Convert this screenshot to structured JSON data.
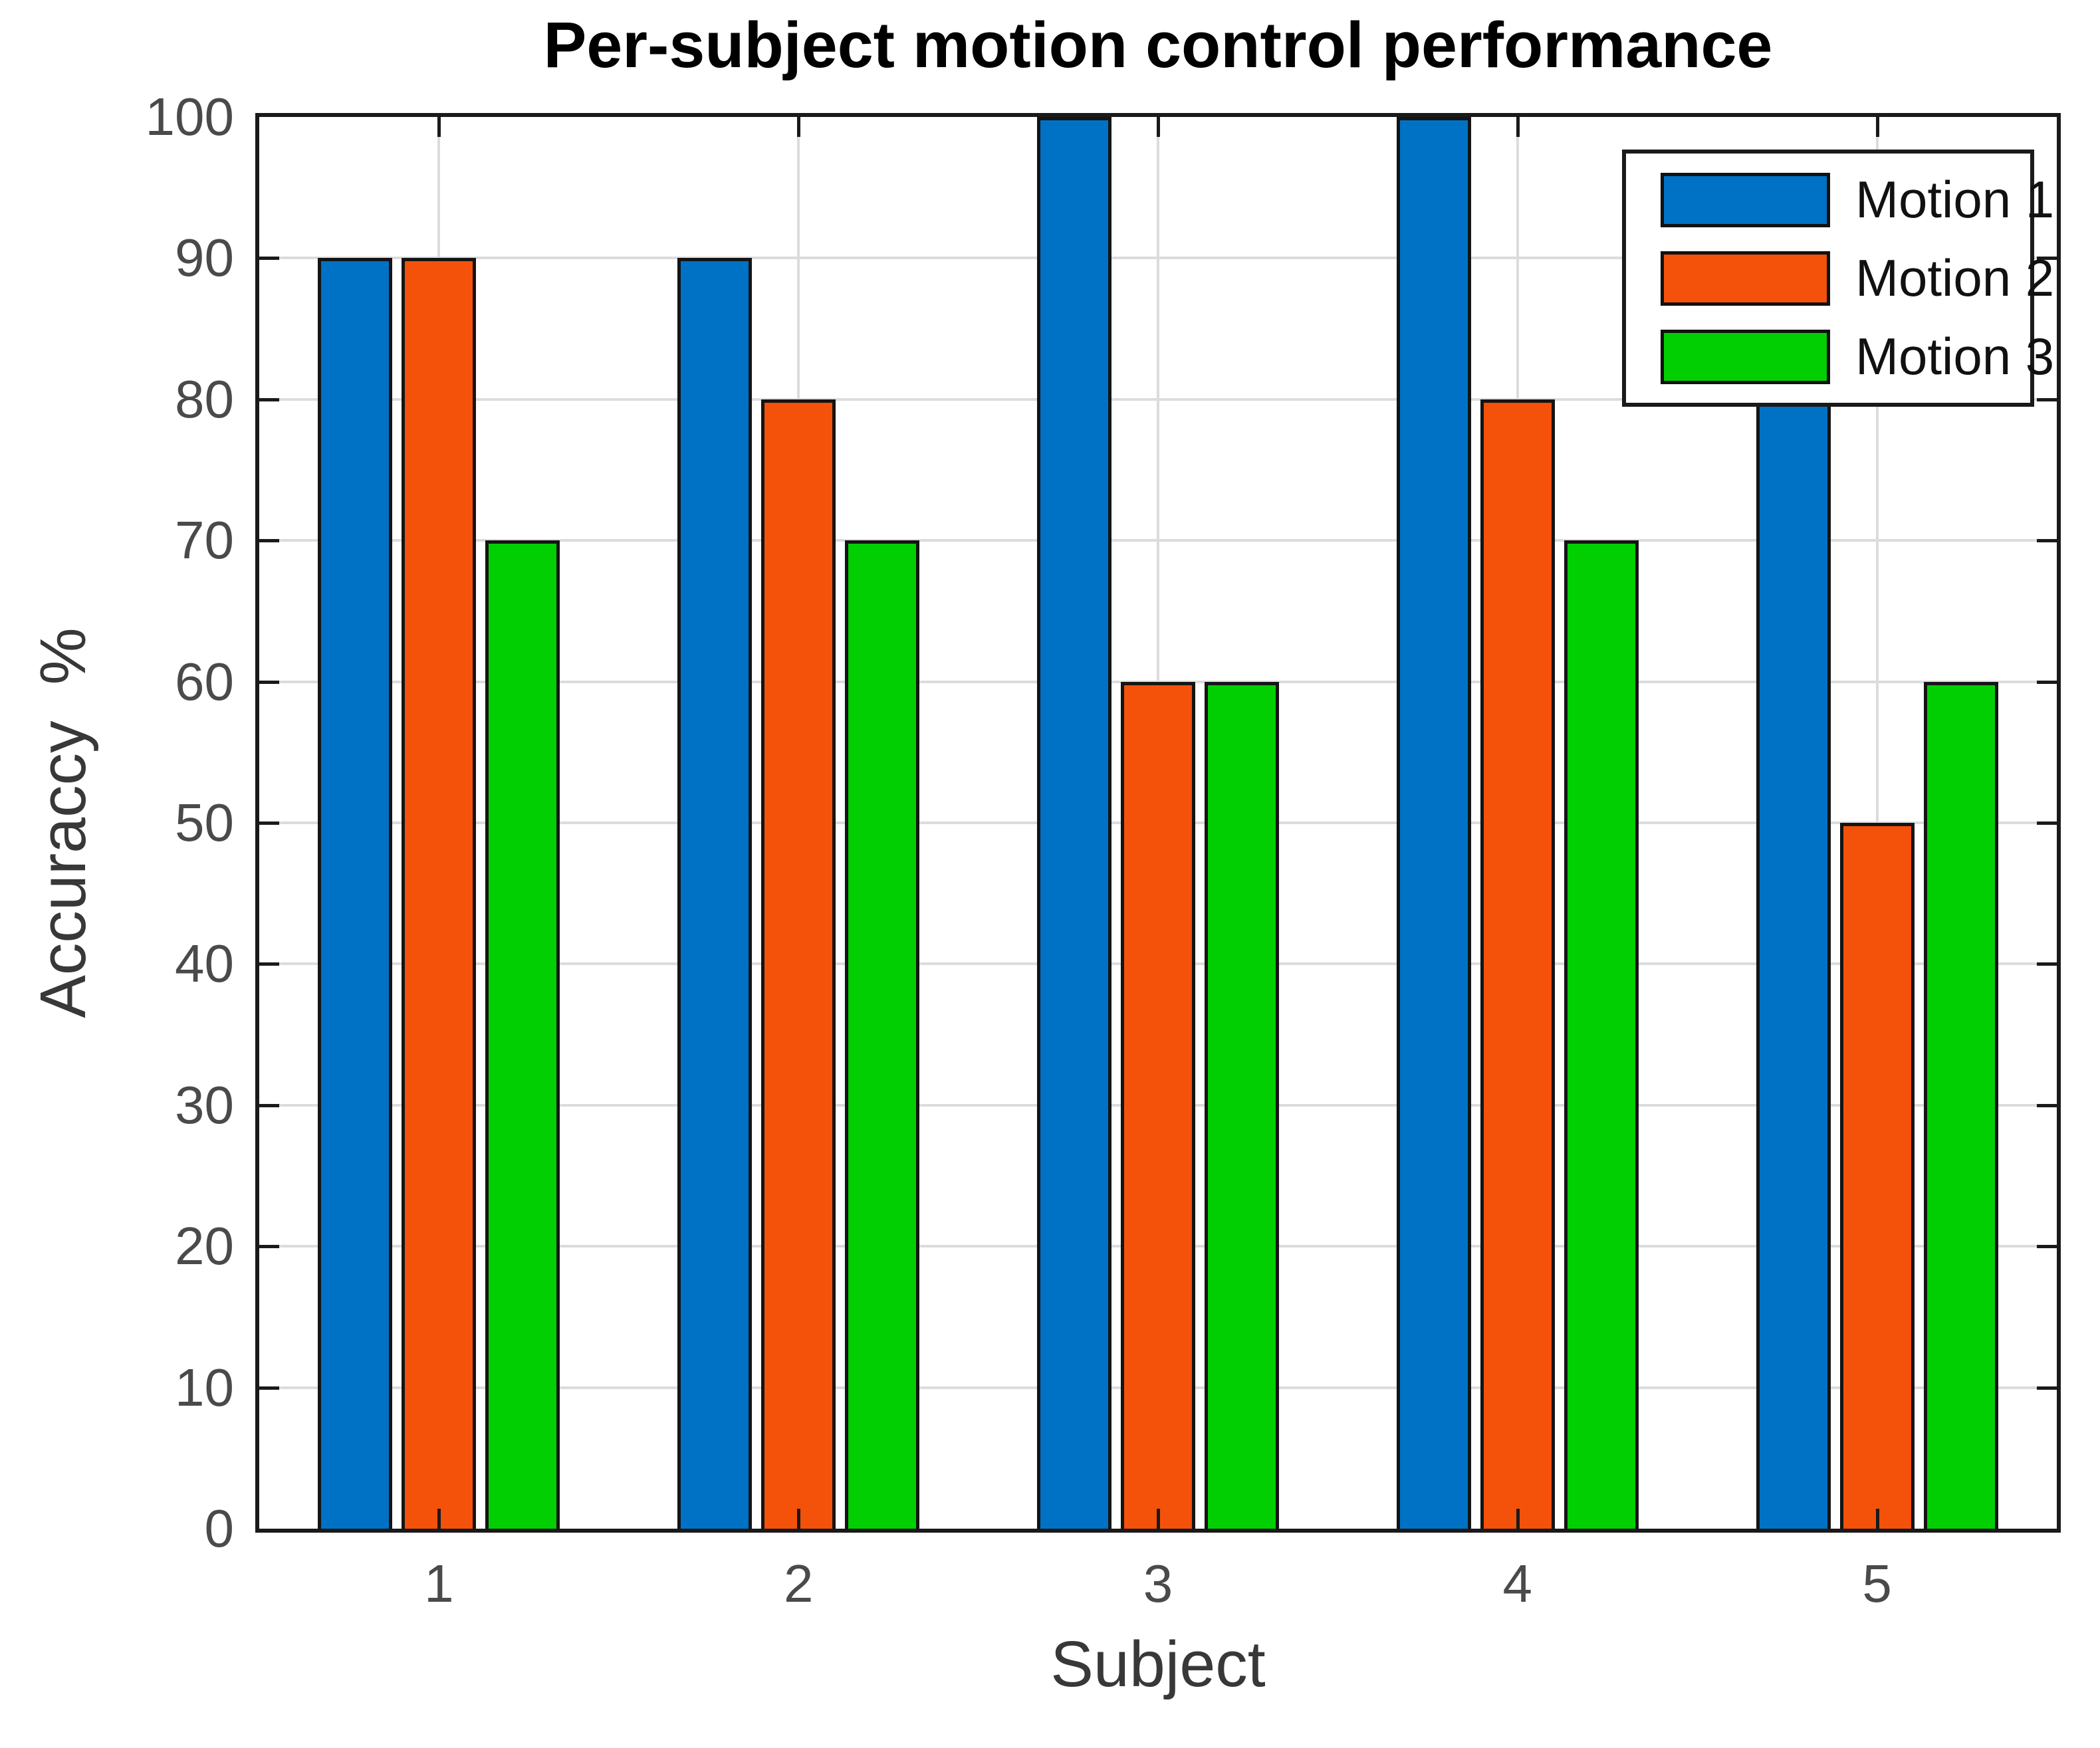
{
  "title": "Per-subject motion control performance",
  "chart_data": {
    "type": "bar",
    "title": "Per-subject motion control performance",
    "xlabel": "Subject",
    "ylabel": "Accuraccy  %",
    "categories": [
      "1",
      "2",
      "3",
      "4",
      "5"
    ],
    "series": [
      {
        "name": "Motion 1",
        "color": "#0072C5",
        "values": [
          90,
          90,
          100,
          100,
          80
        ]
      },
      {
        "name": "Motion 2",
        "color": "#F4510B",
        "values": [
          90,
          80,
          60,
          80,
          50
        ]
      },
      {
        "name": "Motion 3",
        "color": "#02CF02",
        "values": [
          70,
          70,
          60,
          70,
          60
        ]
      }
    ],
    "ylim": [
      0,
      100
    ],
    "ytick_step": 10,
    "yticks": [
      "0",
      "10",
      "20",
      "30",
      "40",
      "50",
      "60",
      "70",
      "80",
      "90",
      "100"
    ],
    "grid": true,
    "grid_vertical_at_group_centers": true,
    "tick_direction": "in",
    "legend_position": "top-right",
    "legend_labels": [
      "Motion 1",
      "Motion 2",
      "Motion 3"
    ]
  },
  "colors": {
    "background": "#ffffff",
    "axis_frame": "#1a1a1a",
    "gridline": "#dcdcdc",
    "bar_edge": "#141414",
    "tick_mark": "#1a1a1a",
    "tick_label": "#4a4a4a",
    "axis_label": "#383838",
    "title": "#000000",
    "series_blue": "#0072C5",
    "series_orange": "#F4510B",
    "series_green": "#02CF02"
  }
}
